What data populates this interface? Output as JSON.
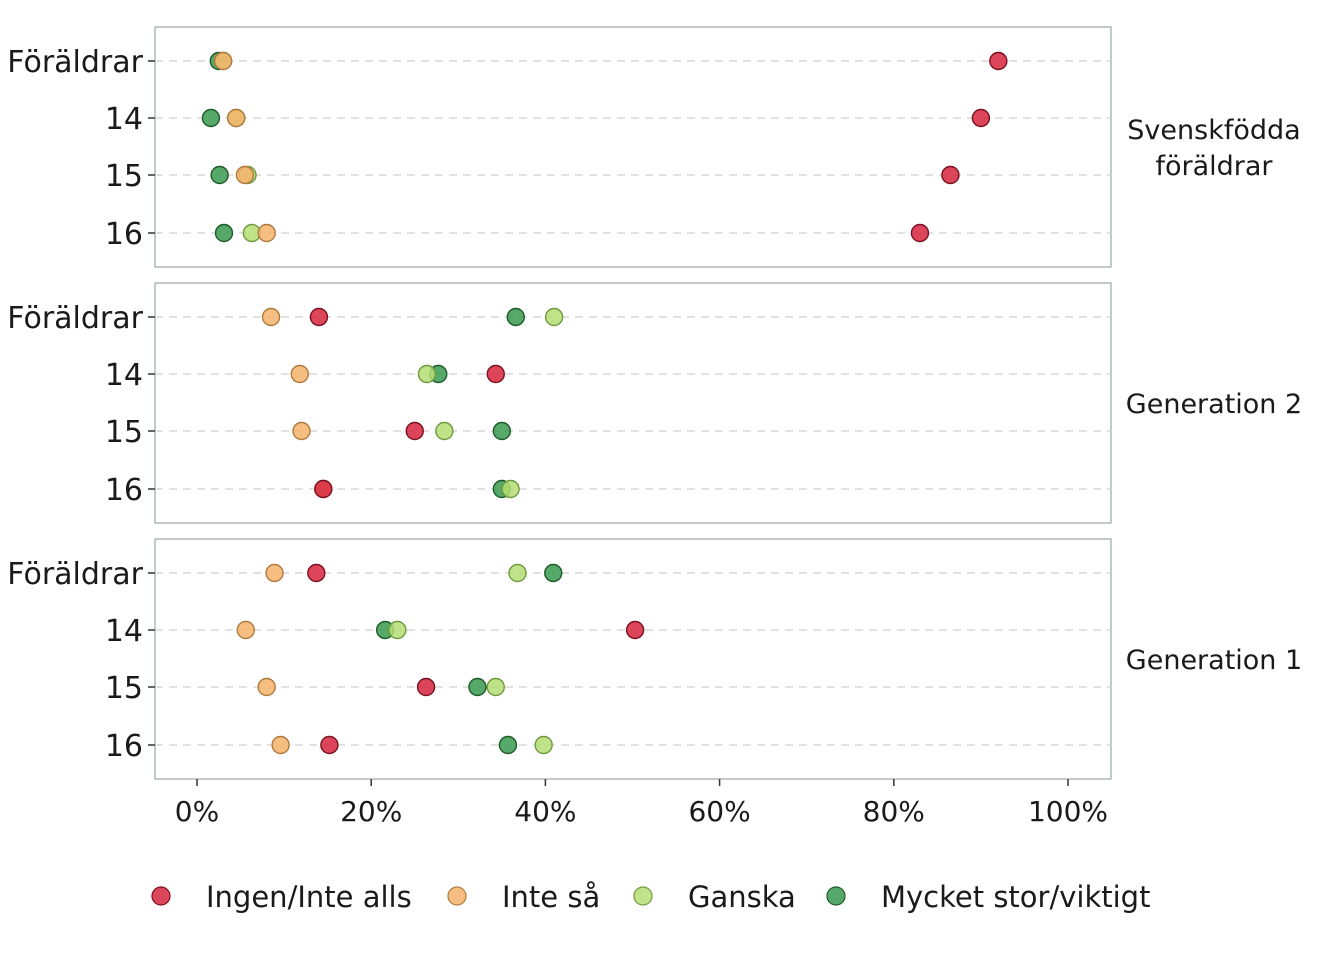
{
  "chart_data": {
    "type": "scatter",
    "x_axis": {
      "min": -0.05,
      "max": 1.05,
      "ticks": [
        0,
        0.2,
        0.4,
        0.6,
        0.8,
        1.0
      ],
      "tick_labels": [
        "0%",
        "20%",
        "40%",
        "60%",
        "80%",
        "100%"
      ]
    },
    "y_categories": [
      "Föräldrar",
      "14",
      "15",
      "16"
    ],
    "legend": {
      "position": "bottom",
      "entries": [
        {
          "name": "Ingen/Inte alls",
          "color": "#d7263d"
        },
        {
          "name": "Inte så",
          "color": "#f6b36b"
        },
        {
          "name": "Ganska",
          "color": "#b5de76"
        },
        {
          "name": "Mycket stor/viktigt",
          "color": "#3a9a4f"
        }
      ]
    },
    "panels": [
      {
        "label_lines": [
          "Svenskfödda",
          "föräldrar"
        ],
        "rows": [
          {
            "category": "Föräldrar",
            "values": {
              "Ingen/Inte alls": 0.92,
              "Inte så": 0.03,
              "Ganska": 0.03,
              "Mycket stor/viktigt": 0.025
            }
          },
          {
            "category": "14",
            "values": {
              "Ingen/Inte alls": 0.9,
              "Inte så": 0.045,
              "Ganska": 0.045,
              "Mycket stor/viktigt": 0.016
            }
          },
          {
            "category": "15",
            "values": {
              "Ingen/Inte alls": 0.865,
              "Inte så": 0.055,
              "Ganska": 0.058,
              "Mycket stor/viktigt": 0.026
            }
          },
          {
            "category": "16",
            "values": {
              "Ingen/Inte alls": 0.83,
              "Inte så": 0.08,
              "Ganska": 0.063,
              "Mycket stor/viktigt": 0.031
            }
          }
        ]
      },
      {
        "label_lines": [
          "Generation 2"
        ],
        "rows": [
          {
            "category": "Föräldrar",
            "values": {
              "Ingen/Inte alls": 0.14,
              "Inte så": 0.085,
              "Ganska": 0.41,
              "Mycket stor/viktigt": 0.366
            }
          },
          {
            "category": "14",
            "values": {
              "Ingen/Inte alls": 0.343,
              "Inte så": 0.118,
              "Ganska": 0.264,
              "Mycket stor/viktigt": 0.277
            }
          },
          {
            "category": "15",
            "values": {
              "Ingen/Inte alls": 0.25,
              "Inte så": 0.12,
              "Ganska": 0.284,
              "Mycket stor/viktigt": 0.35
            }
          },
          {
            "category": "16",
            "values": {
              "Ingen/Inte alls": 0.145,
              "Inte så": 0.145,
              "Ganska": 0.36,
              "Mycket stor/viktigt": 0.35
            }
          }
        ]
      },
      {
        "label_lines": [
          "Generation 1"
        ],
        "rows": [
          {
            "category": "Föräldrar",
            "values": {
              "Ingen/Inte alls": 0.137,
              "Inte så": 0.089,
              "Ganska": 0.368,
              "Mycket stor/viktigt": 0.409
            }
          },
          {
            "category": "14",
            "values": {
              "Ingen/Inte alls": 0.503,
              "Inte så": 0.056,
              "Ganska": 0.23,
              "Mycket stor/viktigt": 0.216
            }
          },
          {
            "category": "15",
            "values": {
              "Ingen/Inte alls": 0.263,
              "Inte så": 0.08,
              "Ganska": 0.343,
              "Mycket stor/viktigt": 0.322
            }
          },
          {
            "category": "16",
            "values": {
              "Ingen/Inte alls": 0.152,
              "Inte så": 0.096,
              "Ganska": 0.398,
              "Mycket stor/viktigt": 0.357
            }
          }
        ]
      }
    ]
  }
}
